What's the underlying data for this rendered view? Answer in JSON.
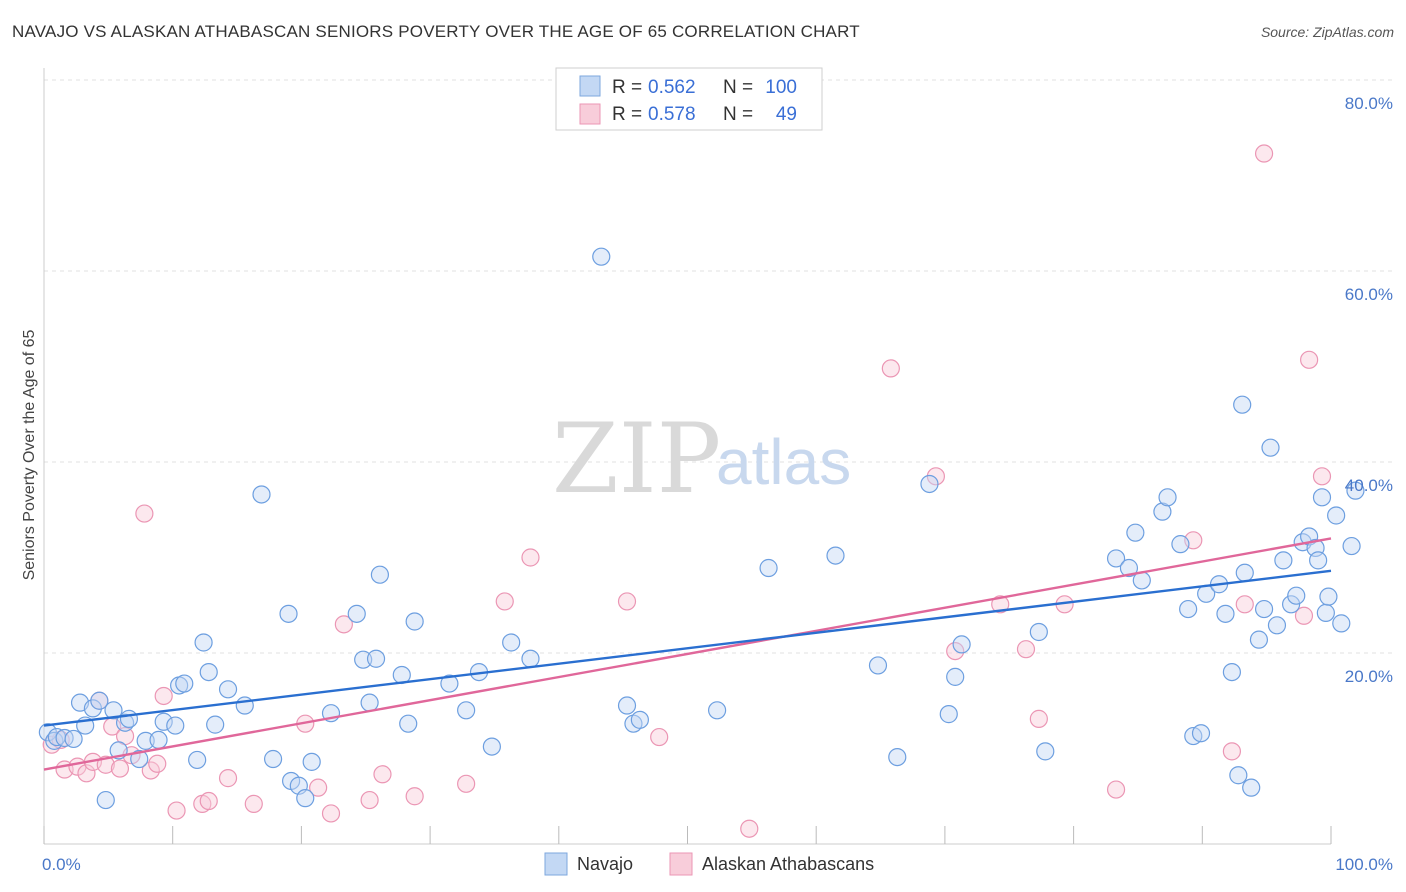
{
  "header": {
    "title": "NAVAJO VS ALASKAN ATHABASCAN SENIORS POVERTY OVER THE AGE OF 65 CORRELATION CHART",
    "source": "Source: ZipAtlas.com"
  },
  "watermark": {
    "zip": "ZIP",
    "atlas": "atlas"
  },
  "legend": {
    "rows": [
      {
        "r_label": "R =",
        "r_value": "0.562",
        "n_label": "N =",
        "n_value": "100",
        "color": "#a9c8f0"
      },
      {
        "r_label": "R =",
        "r_value": "0.578",
        "n_label": "N =",
        "n_value": "49",
        "color": "#f5b8cb"
      }
    ]
  },
  "bottom_legend": {
    "navajo": "Navajo",
    "athabascan": "Alaskan Athabascans"
  },
  "chart_data": {
    "type": "scatter",
    "title": "NAVAJO VS ALASKAN ATHABASCAN SENIORS POVERTY OVER THE AGE OF 65 CORRELATION CHART",
    "ylabel": "Seniors Poverty Over the Age of 65",
    "xlabel": "",
    "xlim": [
      0,
      100
    ],
    "ylim": [
      0,
      80
    ],
    "x_tick_labels": [
      "0.0%",
      "100.0%"
    ],
    "y_tick_labels": [
      "20.0%",
      "40.0%",
      "60.0%",
      "80.0%"
    ],
    "y_ticks": [
      20,
      40,
      60,
      80
    ],
    "grid": true,
    "legend_placement": "top-center",
    "colors": {
      "navajo": "#6d9fe0",
      "navajo_line": "#2a6fd0",
      "athabascan": "#ee8fb0",
      "athabascan_line": "#e0679a"
    },
    "series": [
      {
        "name": "Navajo",
        "regression": [
          [
            0,
            12.4
          ],
          [
            100,
            28.6
          ]
        ],
        "points": [
          [
            0.3,
            11.7
          ],
          [
            0.8,
            10.8
          ],
          [
            1.0,
            11.2
          ],
          [
            1.6,
            11.1
          ],
          [
            2.3,
            11.0
          ],
          [
            2.8,
            14.8
          ],
          [
            3.2,
            12.4
          ],
          [
            3.8,
            14.2
          ],
          [
            4.3,
            15.0
          ],
          [
            4.8,
            4.6
          ],
          [
            5.4,
            14.0
          ],
          [
            5.8,
            9.8
          ],
          [
            6.3,
            12.7
          ],
          [
            6.6,
            13.1
          ],
          [
            7.4,
            8.9
          ],
          [
            7.9,
            10.8
          ],
          [
            8.9,
            10.9
          ],
          [
            9.3,
            12.8
          ],
          [
            10.2,
            12.4
          ],
          [
            10.5,
            16.6
          ],
          [
            10.9,
            16.8
          ],
          [
            11.9,
            8.8
          ],
          [
            12.4,
            21.1
          ],
          [
            12.8,
            18.0
          ],
          [
            13.3,
            12.5
          ],
          [
            14.3,
            16.2
          ],
          [
            15.6,
            14.5
          ],
          [
            16.9,
            36.6
          ],
          [
            17.8,
            8.9
          ],
          [
            19.0,
            24.1
          ],
          [
            19.2,
            6.6
          ],
          [
            19.8,
            6.1
          ],
          [
            20.3,
            4.8
          ],
          [
            20.8,
            8.6
          ],
          [
            22.3,
            13.7
          ],
          [
            24.3,
            24.1
          ],
          [
            24.8,
            19.3
          ],
          [
            25.3,
            14.8
          ],
          [
            25.8,
            19.4
          ],
          [
            26.1,
            28.2
          ],
          [
            27.8,
            17.7
          ],
          [
            28.3,
            12.6
          ],
          [
            28.8,
            23.3
          ],
          [
            31.5,
            16.8
          ],
          [
            32.8,
            14.0
          ],
          [
            33.8,
            18.0
          ],
          [
            34.8,
            10.2
          ],
          [
            36.3,
            21.1
          ],
          [
            37.8,
            19.4
          ],
          [
            43.3,
            61.5
          ],
          [
            45.3,
            14.5
          ],
          [
            45.8,
            12.6
          ],
          [
            46.3,
            13.0
          ],
          [
            52.3,
            14.0
          ],
          [
            56.3,
            28.9
          ],
          [
            61.5,
            30.2
          ],
          [
            64.8,
            18.7
          ],
          [
            66.3,
            9.1
          ],
          [
            68.8,
            37.7
          ],
          [
            70.3,
            13.6
          ],
          [
            70.8,
            17.5
          ],
          [
            71.3,
            20.9
          ],
          [
            77.3,
            22.2
          ],
          [
            77.8,
            9.7
          ],
          [
            83.3,
            29.9
          ],
          [
            84.3,
            28.9
          ],
          [
            84.8,
            32.6
          ],
          [
            85.3,
            27.6
          ],
          [
            86.9,
            34.8
          ],
          [
            87.3,
            36.3
          ],
          [
            88.3,
            31.4
          ],
          [
            88.9,
            24.6
          ],
          [
            89.3,
            11.3
          ],
          [
            89.9,
            11.6
          ],
          [
            90.3,
            26.2
          ],
          [
            91.3,
            27.2
          ],
          [
            91.8,
            24.1
          ],
          [
            92.3,
            18.0
          ],
          [
            92.8,
            7.2
          ],
          [
            93.1,
            46.0
          ],
          [
            93.3,
            28.4
          ],
          [
            93.8,
            5.9
          ],
          [
            94.4,
            21.4
          ],
          [
            94.8,
            24.6
          ],
          [
            95.3,
            41.5
          ],
          [
            95.8,
            22.9
          ],
          [
            96.3,
            29.7
          ],
          [
            96.9,
            25.1
          ],
          [
            97.3,
            26.0
          ],
          [
            97.8,
            31.6
          ],
          [
            98.3,
            32.2
          ],
          [
            98.8,
            31.0
          ],
          [
            99.0,
            29.7
          ],
          [
            99.3,
            36.3
          ],
          [
            99.6,
            24.2
          ],
          [
            99.8,
            25.9
          ],
          [
            100.4,
            34.4
          ],
          [
            100.8,
            23.1
          ],
          [
            101.6,
            31.2
          ],
          [
            101.9,
            37.0
          ]
        ]
      },
      {
        "name": "Alaskan Athabascans",
        "regression": [
          [
            0,
            7.8
          ],
          [
            100,
            32.0
          ]
        ],
        "points": [
          [
            0.6,
            10.4
          ],
          [
            1.3,
            10.9
          ],
          [
            1.6,
            7.8
          ],
          [
            2.6,
            8.1
          ],
          [
            3.3,
            7.4
          ],
          [
            3.8,
            8.6
          ],
          [
            4.3,
            15.0
          ],
          [
            4.8,
            8.3
          ],
          [
            5.3,
            12.3
          ],
          [
            5.9,
            7.9
          ],
          [
            6.3,
            11.3
          ],
          [
            6.8,
            9.3
          ],
          [
            7.8,
            34.6
          ],
          [
            8.3,
            7.7
          ],
          [
            8.8,
            8.4
          ],
          [
            9.3,
            15.5
          ],
          [
            10.3,
            3.5
          ],
          [
            12.3,
            4.2
          ],
          [
            12.8,
            4.5
          ],
          [
            14.3,
            6.9
          ],
          [
            16.3,
            4.2
          ],
          [
            20.3,
            12.6
          ],
          [
            21.3,
            5.9
          ],
          [
            22.3,
            3.2
          ],
          [
            23.3,
            23.0
          ],
          [
            25.3,
            4.6
          ],
          [
            26.3,
            7.3
          ],
          [
            28.8,
            5.0
          ],
          [
            32.8,
            6.3
          ],
          [
            35.8,
            25.4
          ],
          [
            37.8,
            30.0
          ],
          [
            45.3,
            25.4
          ],
          [
            47.8,
            11.2
          ],
          [
            54.8,
            1.6
          ],
          [
            65.8,
            49.8
          ],
          [
            69.3,
            38.5
          ],
          [
            70.8,
            20.2
          ],
          [
            74.3,
            25.1
          ],
          [
            76.3,
            20.4
          ],
          [
            77.3,
            13.1
          ],
          [
            79.3,
            25.1
          ],
          [
            83.3,
            5.7
          ],
          [
            89.3,
            31.8
          ],
          [
            92.3,
            9.7
          ],
          [
            93.3,
            25.1
          ],
          [
            94.8,
            72.3
          ],
          [
            97.9,
            23.9
          ],
          [
            98.3,
            50.7
          ],
          [
            99.3,
            38.5
          ]
        ]
      }
    ]
  }
}
